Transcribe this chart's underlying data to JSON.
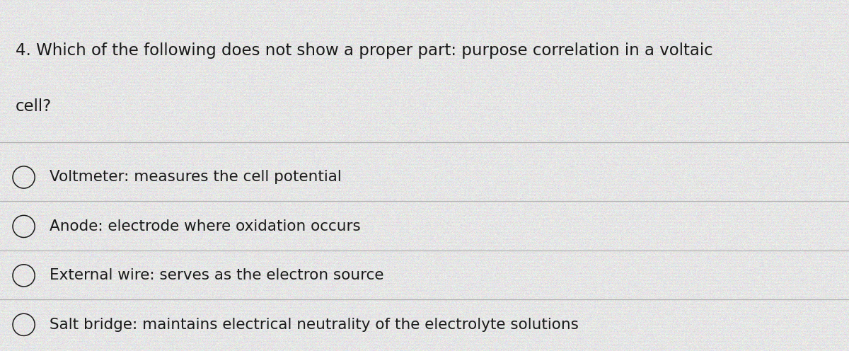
{
  "background_color": "#e8e8e8",
  "question_line1": "4. Which of the following does not show a proper part: purpose correlation in a voltaic",
  "question_line2": "cell?",
  "options": [
    "Voltmeter: measures the cell potential",
    "Anode: electrode where oxidation occurs",
    "External wire: serves as the electron source",
    "Salt bridge: maintains electrical neutrality of the electrolyte solutions"
  ],
  "text_color": "#1a1a1a",
  "line_color": "#b0b0b0",
  "font_size_question": 16.5,
  "font_size_options": 15.5,
  "fig_width": 12.0,
  "fig_height": 4.96
}
